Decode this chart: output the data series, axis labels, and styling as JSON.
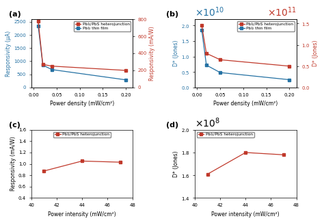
{
  "panel_a": {
    "title": "(a)",
    "xlabel": "Power density (mW/cm²)",
    "ylabel_left": "Responsivity (μA)",
    "ylabel_right": "Responsivity (mA/W)",
    "blue_x": [
      0.01,
      0.02,
      0.04,
      0.2
    ],
    "blue_y": [
      2350,
      850,
      680,
      290
    ],
    "red_x": [
      0.01,
      0.02,
      0.04,
      0.2
    ],
    "red_y": [
      780,
      270,
      250,
      200
    ],
    "ylim_left": [
      0,
      2600
    ],
    "ylim_right": [
      0,
      800
    ],
    "yticks_left": [
      0,
      500,
      1000,
      1500,
      2000,
      2500
    ],
    "yticks_right": [
      0,
      200,
      400,
      600,
      800
    ],
    "xlim": [
      -0.005,
      0.215
    ],
    "xticks": [
      0.0,
      0.05,
      0.1,
      0.15,
      0.2
    ],
    "legend_red": "PbI₂/PbS heterojunction",
    "legend_blue": "PbI₂ thin film"
  },
  "panel_b": {
    "title": "(b)",
    "xlabel": "Power density (mW/cm²)",
    "ylabel_left": "D* (Jones)",
    "ylabel_right": "D* (Jones)",
    "blue_x": [
      0.01,
      0.02,
      0.05,
      0.2
    ],
    "blue_y": [
      18500000000.0,
      7200000000.0,
      4800000000.0,
      2500000000.0
    ],
    "red_x": [
      0.01,
      0.02,
      0.05,
      0.2
    ],
    "red_y": [
      145000000000.0,
      80000000000.0,
      65000000000.0,
      50000000000.0
    ],
    "ylim_left": [
      0,
      22000000000.0
    ],
    "ylim_right": [
      0,
      160000000000.0
    ],
    "xlim": [
      -0.005,
      0.215
    ],
    "xticks": [
      0.0,
      0.05,
      0.1,
      0.15,
      0.2
    ],
    "legend_red": "PbI₂/PbS heterojunction",
    "legend_blue": "PbI₂ thin film"
  },
  "panel_c": {
    "title": "(c)",
    "xlabel": "Power intensity (mW/cm²)",
    "ylabel": "Responsivity (mA/W)",
    "red_x": [
      41,
      44,
      47
    ],
    "red_y": [
      0.875,
      1.05,
      1.03
    ],
    "ylim": [
      0.4,
      1.6
    ],
    "xlim": [
      40,
      48
    ],
    "yticks": [
      0.4,
      0.6,
      0.8,
      1.0,
      1.2,
      1.4,
      1.6
    ],
    "xticks": [
      40,
      42,
      44,
      46,
      48
    ],
    "legend_red": "PbI₂/PbS heterojunction"
  },
  "panel_d": {
    "title": "(d)",
    "xlabel": "Power intensity (mW/cm²)",
    "ylabel": "D* (Jones)",
    "red_x": [
      41,
      44,
      47
    ],
    "red_y": [
      161000000.0,
      180000000.0,
      178000000.0
    ],
    "ylim": [
      140000000.0,
      200000000.0
    ],
    "xlim": [
      40,
      48
    ],
    "xticks": [
      40,
      42,
      44,
      46,
      48
    ],
    "legend_red": "PbI₂/PbS heterojunction"
  },
  "colors": {
    "red": "#c0392b",
    "blue": "#2471a3",
    "bg": "#ffffff"
  }
}
